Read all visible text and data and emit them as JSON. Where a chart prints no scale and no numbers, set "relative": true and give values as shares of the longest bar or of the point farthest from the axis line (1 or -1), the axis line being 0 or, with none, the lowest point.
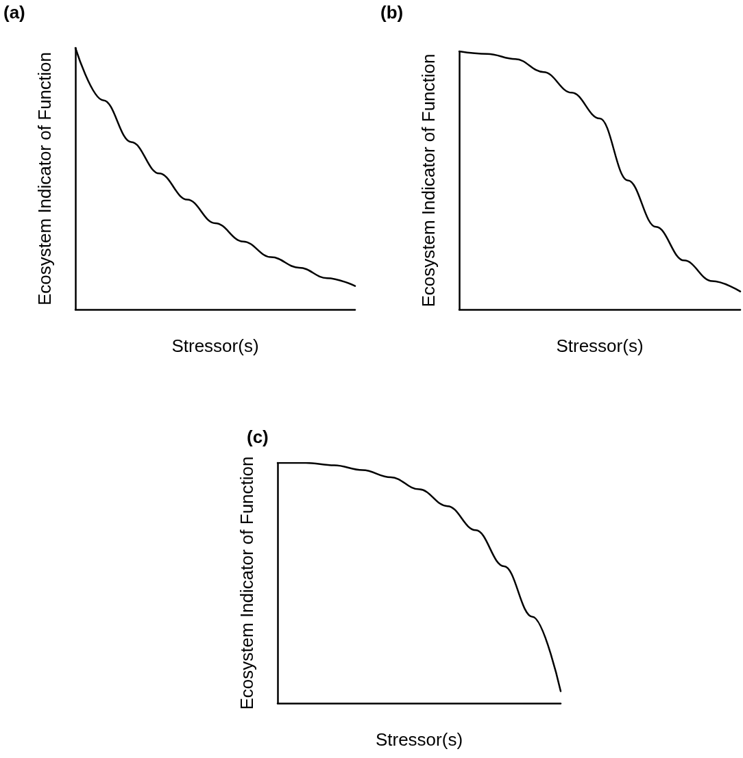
{
  "chart_data": [
    {
      "type": "line",
      "title": "(a)",
      "xlabel": "Stressor(s)",
      "ylabel": "Ecosystem Indicator of Function",
      "relative": true,
      "categories": [
        null,
        null,
        null,
        null,
        null,
        null,
        null,
        null,
        null,
        null,
        null
      ],
      "series": [
        {
          "color": "#000000",
          "values": [
            1.0,
            0.8,
            0.64,
            0.52,
            0.42,
            0.33,
            0.26,
            0.2,
            0.16,
            0.12,
            0.09
          ]
        }
      ]
    },
    {
      "type": "line",
      "title": "(b)",
      "xlabel": "Stressor(s)",
      "ylabel": "Ecosystem Indicator of Function",
      "relative": true,
      "categories": [
        null,
        null,
        null,
        null,
        null,
        null,
        null,
        null,
        null,
        null,
        null
      ],
      "series": [
        {
          "color": "#000000",
          "values": [
            1.0,
            0.99,
            0.97,
            0.92,
            0.84,
            0.74,
            0.5,
            0.32,
            0.19,
            0.11,
            0.07
          ]
        }
      ]
    },
    {
      "type": "line",
      "title": "(c)",
      "xlabel": "Stressor(s)",
      "ylabel": "Ecosystem Indicator of Function",
      "relative": true,
      "categories": [
        null,
        null,
        null,
        null,
        null,
        null,
        null,
        null,
        null,
        null,
        null
      ],
      "series": [
        {
          "color": "#000000",
          "values": [
            1.0,
            1.0,
            0.99,
            0.97,
            0.94,
            0.89,
            0.82,
            0.72,
            0.57,
            0.36,
            0.05
          ]
        }
      ]
    }
  ]
}
